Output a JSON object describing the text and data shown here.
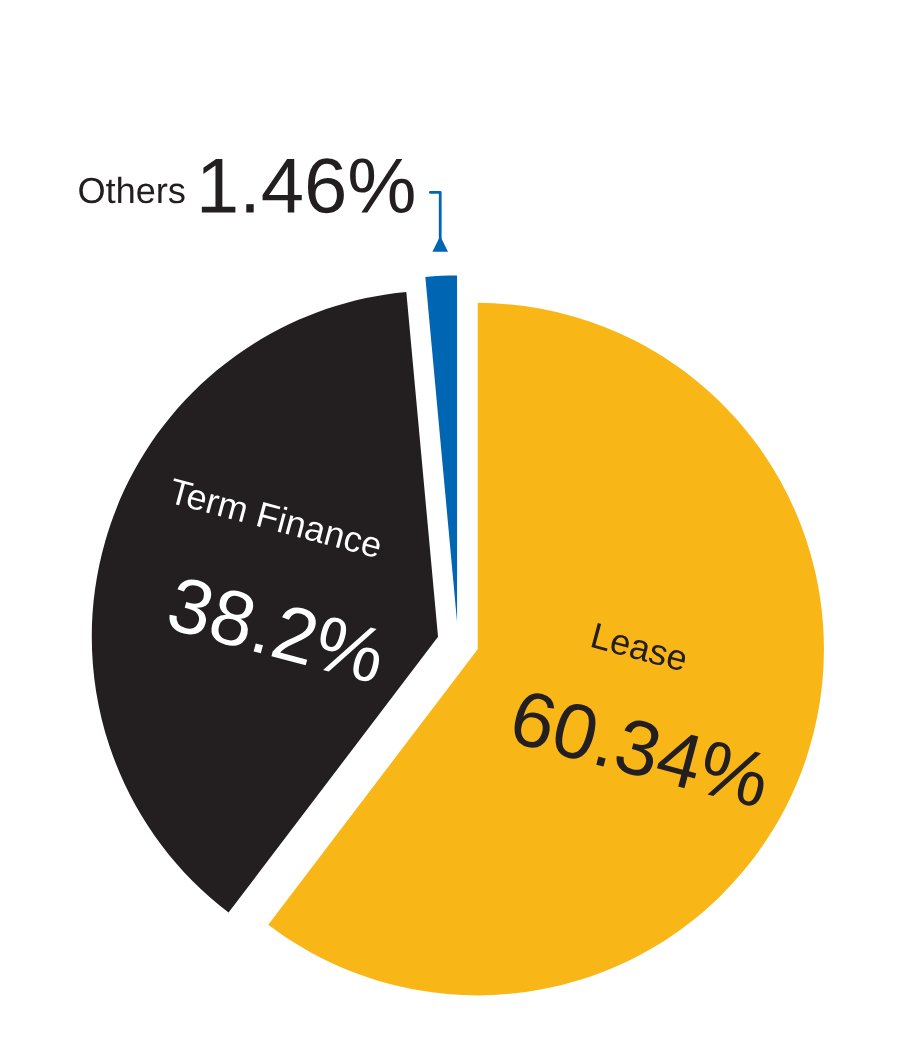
{
  "chart_data": {
    "type": "pie",
    "categories": [
      "Lease",
      "Term Finance",
      "Others"
    ],
    "values": [
      60.34,
      38.2,
      1.46
    ],
    "colors": [
      "#f9b717",
      "#231f20",
      "#0066b3"
    ],
    "value_labels": [
      "60.34%",
      "38.2%",
      "1.46%"
    ]
  }
}
